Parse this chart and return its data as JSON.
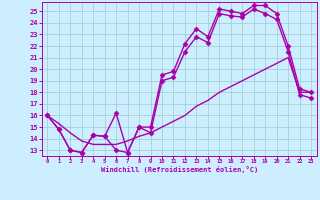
{
  "bg_color": "#cceeff",
  "line_color": "#aa00aa",
  "grid_color": "#99cccc",
  "xlim": [
    -0.5,
    23.5
  ],
  "ylim": [
    12.5,
    25.8
  ],
  "xticks": [
    0,
    1,
    2,
    3,
    4,
    5,
    6,
    7,
    8,
    9,
    10,
    11,
    12,
    13,
    14,
    15,
    16,
    17,
    18,
    19,
    20,
    21,
    22,
    23
  ],
  "yticks": [
    13,
    14,
    15,
    16,
    17,
    18,
    19,
    20,
    21,
    22,
    23,
    24,
    25
  ],
  "xlabel": "Windchill (Refroidissement éolien,°C)",
  "line1_x": [
    0,
    1,
    2,
    3,
    4,
    5,
    6,
    7,
    8,
    9,
    10,
    11,
    12,
    13,
    14,
    15,
    16,
    17,
    18,
    19,
    20,
    21,
    22,
    23
  ],
  "line1_y": [
    16.0,
    14.8,
    13.0,
    12.8,
    14.3,
    14.2,
    16.2,
    12.8,
    15.0,
    15.0,
    19.5,
    19.8,
    22.2,
    23.5,
    22.8,
    25.2,
    25.0,
    24.8,
    25.5,
    25.5,
    24.8,
    22.0,
    18.3,
    18.0
  ],
  "line2_x": [
    0,
    1,
    2,
    3,
    4,
    5,
    6,
    7,
    8,
    9,
    10,
    11,
    12,
    13,
    14,
    15,
    16,
    17,
    18,
    19,
    20,
    21,
    22,
    23
  ],
  "line2_y": [
    16.0,
    14.8,
    13.0,
    12.8,
    14.3,
    14.2,
    13.0,
    12.8,
    15.0,
    14.5,
    19.0,
    19.3,
    21.5,
    22.8,
    22.3,
    24.8,
    24.6,
    24.5,
    25.2,
    24.8,
    24.3,
    21.5,
    17.8,
    17.5
  ],
  "line3_x": [
    0,
    1,
    2,
    3,
    4,
    5,
    6,
    7,
    8,
    9,
    10,
    11,
    12,
    13,
    14,
    15,
    16,
    17,
    18,
    19,
    20,
    21,
    22,
    23
  ],
  "line3_y": [
    16.0,
    15.3,
    14.5,
    13.8,
    13.5,
    13.5,
    13.5,
    13.8,
    14.2,
    14.5,
    15.0,
    15.5,
    16.0,
    16.8,
    17.3,
    18.0,
    18.5,
    19.0,
    19.5,
    20.0,
    20.5,
    21.0,
    18.0,
    18.0
  ],
  "marker": "D",
  "markersize": 2.5,
  "linewidth": 1.0
}
